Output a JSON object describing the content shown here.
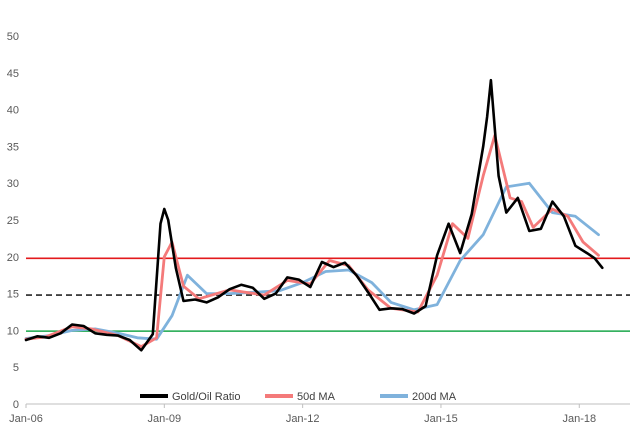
{
  "chart_data": {
    "type": "line",
    "title": "",
    "xlabel": "",
    "ylabel": "",
    "ylim": [
      0,
      50
    ],
    "y_ticks": [
      0,
      5,
      10,
      15,
      20,
      25,
      30,
      35,
      40,
      45,
      50
    ],
    "x_ticks": [
      "Jan-06",
      "Jan-09",
      "Jan-12",
      "Jan-15",
      "Jan-18"
    ],
    "grid": false,
    "legend_position": "bottom-center",
    "reference_lines": [
      {
        "y": 19.8,
        "color": "#e31a1c",
        "style": "solid"
      },
      {
        "y": 14.8,
        "color": "#262626",
        "style": "dashed"
      },
      {
        "y": 9.9,
        "color": "#1aa64a",
        "style": "solid"
      }
    ],
    "series": [
      {
        "name": "Gold/Oil Ratio",
        "color": "#000000",
        "points": [
          [
            "2006-01",
            8.7
          ],
          [
            "2006-04",
            9.2
          ],
          [
            "2006-07",
            9.0
          ],
          [
            "2006-10",
            9.6
          ],
          [
            "2007-01",
            10.8
          ],
          [
            "2007-04",
            10.6
          ],
          [
            "2007-07",
            9.6
          ],
          [
            "2007-10",
            9.4
          ],
          [
            "2008-01",
            9.3
          ],
          [
            "2008-04",
            8.7
          ],
          [
            "2008-07",
            7.3
          ],
          [
            "2008-10",
            9.5
          ],
          [
            "2008-12",
            24.5
          ],
          [
            "2009-01",
            26.5
          ],
          [
            "2009-02",
            25.0
          ],
          [
            "2009-04",
            18.5
          ],
          [
            "2009-06",
            14.0
          ],
          [
            "2009-09",
            14.2
          ],
          [
            "2009-12",
            13.8
          ],
          [
            "2010-03",
            14.5
          ],
          [
            "2010-06",
            15.6
          ],
          [
            "2010-09",
            16.2
          ],
          [
            "2010-12",
            15.8
          ],
          [
            "2011-03",
            14.3
          ],
          [
            "2011-06",
            15.0
          ],
          [
            "2011-09",
            17.2
          ],
          [
            "2011-12",
            16.9
          ],
          [
            "2012-03",
            15.9
          ],
          [
            "2012-06",
            19.3
          ],
          [
            "2012-09",
            18.6
          ],
          [
            "2012-12",
            19.2
          ],
          [
            "2013-03",
            17.5
          ],
          [
            "2013-06",
            15.2
          ],
          [
            "2013-09",
            12.8
          ],
          [
            "2013-12",
            13.0
          ],
          [
            "2014-03",
            12.9
          ],
          [
            "2014-06",
            12.3
          ],
          [
            "2014-09",
            13.3
          ],
          [
            "2014-12",
            20.2
          ],
          [
            "2015-03",
            24.5
          ],
          [
            "2015-06",
            20.5
          ],
          [
            "2015-09",
            25.8
          ],
          [
            "2015-12",
            35.0
          ],
          [
            "2016-01",
            39.0
          ],
          [
            "2016-02",
            44.0
          ],
          [
            "2016-04",
            31.0
          ],
          [
            "2016-06",
            26.0
          ],
          [
            "2016-09",
            28.0
          ],
          [
            "2016-12",
            23.5
          ],
          [
            "2017-03",
            23.8
          ],
          [
            "2017-06",
            27.5
          ],
          [
            "2017-09",
            25.5
          ],
          [
            "2017-12",
            21.5
          ],
          [
            "2018-03",
            20.5
          ],
          [
            "2018-05",
            19.8
          ],
          [
            "2018-07",
            18.5
          ]
        ]
      },
      {
        "name": "50d MA",
        "color": "#f47a7a",
        "points": [
          [
            "2006-01",
            8.8
          ],
          [
            "2006-06",
            9.1
          ],
          [
            "2007-01",
            10.5
          ],
          [
            "2007-06",
            10.2
          ],
          [
            "2008-01",
            9.3
          ],
          [
            "2008-07",
            7.8
          ],
          [
            "2008-11",
            9.0
          ],
          [
            "2009-01",
            20.0
          ],
          [
            "2009-03",
            22.0
          ],
          [
            "2009-06",
            16.0
          ],
          [
            "2009-10",
            14.3
          ],
          [
            "2010-06",
            15.5
          ],
          [
            "2011-03",
            14.8
          ],
          [
            "2011-09",
            16.8
          ],
          [
            "2012-03",
            16.3
          ],
          [
            "2012-08",
            19.5
          ],
          [
            "2013-01",
            18.8
          ],
          [
            "2013-06",
            15.5
          ],
          [
            "2013-12",
            13.0
          ],
          [
            "2014-07",
            12.5
          ],
          [
            "2014-12",
            17.5
          ],
          [
            "2015-04",
            24.5
          ],
          [
            "2015-08",
            22.5
          ],
          [
            "2015-12",
            31.0
          ],
          [
            "2016-03",
            36.5
          ],
          [
            "2016-07",
            28.0
          ],
          [
            "2016-10",
            27.5
          ],
          [
            "2017-01",
            24.0
          ],
          [
            "2017-06",
            26.5
          ],
          [
            "2017-10",
            25.5
          ],
          [
            "2018-02",
            22.0
          ],
          [
            "2018-06",
            20.2
          ]
        ]
      },
      {
        "name": "200d MA",
        "color": "#7fb2dc",
        "points": [
          [
            "2006-01",
            8.9
          ],
          [
            "2006-07",
            9.3
          ],
          [
            "2007-01",
            10.0
          ],
          [
            "2007-07",
            10.2
          ],
          [
            "2008-01",
            9.6
          ],
          [
            "2008-06",
            9.0
          ],
          [
            "2008-11",
            8.8
          ],
          [
            "2009-03",
            12.0
          ],
          [
            "2009-07",
            17.5
          ],
          [
            "2009-12",
            15.0
          ],
          [
            "2010-06",
            15.0
          ],
          [
            "2011-01",
            15.2
          ],
          [
            "2011-07",
            15.4
          ],
          [
            "2012-01",
            16.5
          ],
          [
            "2012-07",
            18.0
          ],
          [
            "2013-01",
            18.2
          ],
          [
            "2013-07",
            16.5
          ],
          [
            "2013-12",
            13.8
          ],
          [
            "2014-06",
            12.8
          ],
          [
            "2014-12",
            13.5
          ],
          [
            "2015-06",
            19.5
          ],
          [
            "2015-12",
            23.0
          ],
          [
            "2016-06",
            29.5
          ],
          [
            "2016-12",
            30.0
          ],
          [
            "2017-06",
            26.0
          ],
          [
            "2017-12",
            25.5
          ],
          [
            "2018-06",
            23.0
          ]
        ]
      }
    ]
  }
}
